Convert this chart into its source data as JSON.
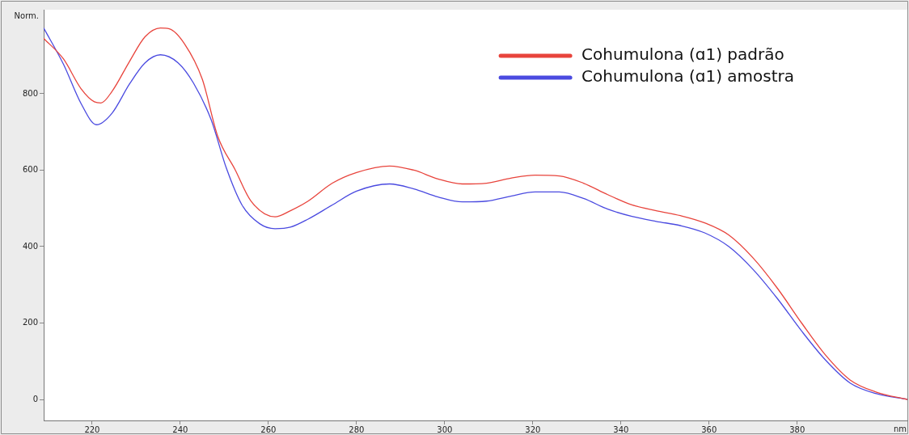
{
  "chart_data": {
    "type": "line",
    "xlabel": "nm",
    "ylabel": "Norm.",
    "xlim": [
      209,
      405
    ],
    "ylim": [
      -55,
      1020
    ],
    "xticks": [
      220,
      240,
      260,
      280,
      300,
      320,
      340,
      360,
      380
    ],
    "yticks": [
      0,
      200,
      400,
      600,
      800
    ],
    "grid": false,
    "legend": "top right",
    "marker": "none",
    "line_style": "solid",
    "series": [
      {
        "name": "Cohumulona (ɑ1) padrão",
        "color": "#e8443c",
        "x": [
          209,
          213.5,
          217.5,
          220.5,
          222,
          224.5,
          228.5,
          232,
          235.5,
          237.5,
          241,
          245,
          248.5,
          252.5,
          256,
          261.5,
          265,
          269,
          274.5,
          280,
          287.5,
          293,
          298.5,
          304,
          309.5,
          315,
          320.5,
          326,
          331.5,
          337,
          342.5,
          348,
          353.5,
          359,
          364.5,
          370,
          375.5,
          381,
          386.5,
          392,
          398,
          405
        ],
        "values": [
          945,
          891,
          813,
          779,
          776,
          806,
          885,
          949,
          972,
          970,
          930,
          838,
          689,
          600,
          520,
          478,
          494,
          519,
          566,
          594,
          611,
          600,
          577,
          564,
          566,
          579,
          587,
          585,
          566,
          536,
          509,
          494,
          481,
          462,
          430,
          370,
          291,
          200,
          115,
          51,
          19,
          0
        ]
      },
      {
        "name": "Cohumulona (ɑ1) amostra",
        "color": "#4a4ae0",
        "x": [
          209,
          213.5,
          217.5,
          221,
          224.5,
          228.5,
          232,
          235.5,
          239.5,
          243,
          247,
          250.5,
          254,
          258,
          261.5,
          265,
          269,
          274.5,
          280,
          287.5,
          293,
          298.5,
          304,
          309.5,
          315,
          320.5,
          326,
          331.5,
          337,
          342.5,
          348,
          353.5,
          359,
          364.5,
          370,
          375.5,
          381,
          386.5,
          392,
          398,
          405
        ],
        "values": [
          972,
          877,
          774,
          719,
          749,
          826,
          881,
          902,
          881,
          828,
          732,
          604,
          509,
          460,
          447,
          451,
          472,
          509,
          545,
          564,
          551,
          530,
          517,
          519,
          532,
          543,
          543,
          526,
          498,
          479,
          466,
          455,
          436,
          400,
          340,
          264,
          179,
          102,
          43,
          15,
          0
        ]
      }
    ]
  }
}
